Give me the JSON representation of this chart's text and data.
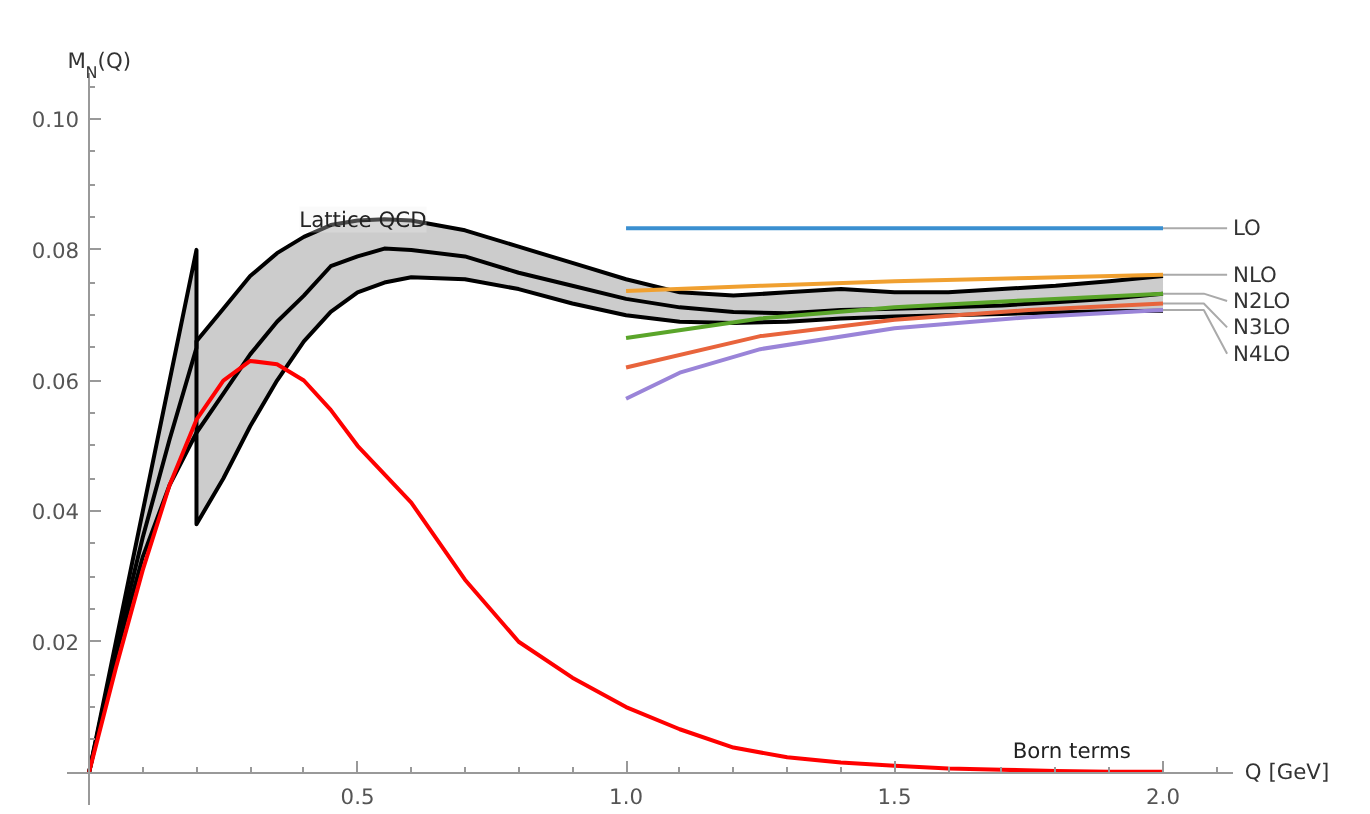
{
  "chart_data": {
    "type": "line",
    "xlabel": "Q [GeV]",
    "ylabel": "M$_{N}$(Q)",
    "xlim": [
      -0.04,
      2.13
    ],
    "ylim": [
      -0.005,
      0.107
    ],
    "xticks": [
      {
        "value": 0.1,
        "label": null
      },
      {
        "value": 0.2,
        "label": null
      },
      {
        "value": 0.3,
        "label": null
      },
      {
        "value": 0.4,
        "label": null
      },
      {
        "value": 0.5,
        "label": "0.5"
      },
      {
        "value": 0.6,
        "label": null
      },
      {
        "value": 0.7,
        "label": null
      },
      {
        "value": 0.8,
        "label": null
      },
      {
        "value": 0.9,
        "label": null
      },
      {
        "value": 1.0,
        "label": "1.0"
      },
      {
        "value": 1.1,
        "label": null
      },
      {
        "value": 1.2,
        "label": null
      },
      {
        "value": 1.3,
        "label": null
      },
      {
        "value": 1.4,
        "label": null
      },
      {
        "value": 1.5,
        "label": "1.5"
      },
      {
        "value": 1.6,
        "label": null
      },
      {
        "value": 1.7,
        "label": null
      },
      {
        "value": 1.8,
        "label": null
      },
      {
        "value": 1.9,
        "label": null
      },
      {
        "value": 2.0,
        "label": "2.0"
      },
      {
        "value": 2.1,
        "label": null
      }
    ],
    "yticks": [
      {
        "value": 0.005,
        "label": null
      },
      {
        "value": 0.01,
        "label": null
      },
      {
        "value": 0.015,
        "label": null
      },
      0.02,
      {
        "value": 0.025,
        "label": null
      },
      {
        "value": 0.03,
        "label": null
      },
      {
        "value": 0.035,
        "label": null
      },
      0.04,
      {
        "value": 0.045,
        "label": null
      },
      {
        "value": 0.05,
        "label": null
      },
      {
        "value": 0.055,
        "label": null
      },
      0.06,
      {
        "value": 0.065,
        "label": null
      },
      {
        "value": 0.07,
        "label": null
      },
      {
        "value": 0.075,
        "label": null
      },
      0.08,
      {
        "value": 0.085,
        "label": null
      },
      {
        "value": 0.09,
        "label": null
      },
      {
        "value": 0.095,
        "label": null
      },
      {
        "value": 0.1,
        "label": "0.10"
      },
      {
        "value": 0.105,
        "label": null
      }
    ],
    "grid": false,
    "marker": "none",
    "line_style": "solid",
    "series": [
      {
        "color": "#000000",
        "x": [
          0,
          0.05,
          0.1,
          0.15,
          0.2,
          0.2,
          0.25,
          0.3,
          0.35,
          0.4,
          0.45,
          0.5,
          0.55,
          0.6,
          0.7,
          0.8,
          0.9,
          1.0,
          1.1,
          1.2,
          1.3,
          1.4,
          1.5,
          1.6,
          1.7,
          1.8,
          1.9,
          2.0
        ],
        "values": [
          0,
          0.02,
          0.04,
          0.06,
          0.08,
          0.052,
          0.058,
          0.064,
          0.069,
          0.073,
          0.0775,
          0.079,
          0.0802,
          0.08,
          0.079,
          0.0765,
          0.0745,
          0.0725,
          0.0712,
          0.0705,
          0.0703,
          0.0708,
          0.071,
          0.0712,
          0.0715,
          0.072,
          0.0725,
          0.0733
        ],
        "lower": [
          0,
          0.018,
          0.033,
          0.044,
          0.052,
          0.038,
          0.045,
          0.053,
          0.06,
          0.066,
          0.0705,
          0.0735,
          0.075,
          0.0758,
          0.0755,
          0.074,
          0.0718,
          0.07,
          0.069,
          0.0688,
          0.069,
          0.0695,
          0.0698,
          0.07,
          0.0702,
          0.0704,
          0.0706,
          0.0707
        ],
        "upper": [
          0,
          0.02,
          0.04,
          0.06,
          0.08,
          0.066,
          0.071,
          0.076,
          0.0795,
          0.082,
          0.0838,
          0.0845,
          0.0847,
          0.0845,
          0.083,
          0.0805,
          0.078,
          0.0755,
          0.0735,
          0.073,
          0.0735,
          0.074,
          0.0735,
          0.0735,
          0.074,
          0.0745,
          0.0752,
          0.076
        ]
      },
      {
        "color": "#000000",
        "x": [
          0,
          0.05,
          0.1,
          0.15,
          0.2,
          0.2,
          0.25,
          0.3,
          0.35,
          0.4,
          0.45,
          0.5,
          0.55,
          0.6,
          0.7,
          0.8,
          0.9,
          1.0,
          1.1,
          1.2,
          1.3,
          1.4,
          1.5,
          1.6,
          1.7,
          1.8,
          1.9,
          2.0
        ],
        "values": [
          0,
          0.019,
          0.036,
          0.051,
          0.065,
          0.066,
          0.071,
          0.076,
          0.0795,
          0.082,
          0.0838,
          0.0845,
          0.0847,
          0.0845,
          0.083,
          0.0805,
          0.078,
          0.0755,
          0.0735,
          0.073,
          0.0735,
          0.074,
          0.0735,
          0.0735,
          0.074,
          0.0745,
          0.0752,
          0.076
        ]
      },
      {
        "color": "#000000",
        "x": [
          0,
          0.05,
          0.1,
          0.15,
          0.2,
          0.2,
          0.25,
          0.3,
          0.35,
          0.4,
          0.45,
          0.5,
          0.55,
          0.6,
          0.7,
          0.8,
          0.9,
          1.0,
          1.1,
          1.2,
          1.3,
          1.4,
          1.5,
          1.6,
          1.7,
          1.8,
          1.9,
          2.0
        ],
        "values": [
          0,
          0.018,
          0.033,
          0.044,
          0.052,
          0.038,
          0.045,
          0.053,
          0.06,
          0.066,
          0.0705,
          0.0735,
          0.075,
          0.0758,
          0.0755,
          0.074,
          0.0718,
          0.07,
          0.069,
          0.0688,
          0.069,
          0.0695,
          0.0698,
          0.07,
          0.0702,
          0.0704,
          0.0706,
          0.0707
        ]
      },
      {
        "color": "#ff0000",
        "x": [
          0,
          0.05,
          0.1,
          0.15,
          0.2,
          0.25,
          0.3,
          0.35,
          0.4,
          0.45,
          0.5,
          0.6,
          0.7,
          0.8,
          0.9,
          1.0,
          1.1,
          1.2,
          1.3,
          1.4,
          1.5,
          1.6,
          1.7,
          1.8,
          1.9,
          2.0
        ],
        "values": [
          0,
          0.016,
          0.031,
          0.044,
          0.054,
          0.06,
          0.063,
          0.0625,
          0.06,
          0.0555,
          0.05,
          0.0413,
          0.0295,
          0.02,
          0.0145,
          0.01,
          0.0066,
          0.0038,
          0.0023,
          0.0015,
          0.001,
          0.0006,
          0.0004,
          0.0002,
          0.0001,
          0.0001
        ]
      },
      {
        "name": "LO",
        "color": "#3a8fd0",
        "x": [
          1.0,
          2.0
        ],
        "values": [
          0.0833,
          0.0833
        ]
      },
      {
        "name": "NLO",
        "color": "#f0a030",
        "x": [
          1.0,
          1.25,
          1.5,
          1.75,
          2.0
        ],
        "values": [
          0.0737,
          0.0745,
          0.0752,
          0.0757,
          0.0762
        ]
      },
      {
        "name": "N2LO",
        "color": "#5aa52a",
        "x": [
          1.0,
          1.25,
          1.5,
          1.75,
          2.0
        ],
        "values": [
          0.0665,
          0.0695,
          0.0712,
          0.0723,
          0.0733
        ]
      },
      {
        "name": "N3LO",
        "color": "#e8643c",
        "x": [
          1.0,
          1.25,
          1.5,
          1.75,
          2.0
        ],
        "values": [
          0.062,
          0.0668,
          0.0693,
          0.0708,
          0.0718
        ]
      },
      {
        "name": "N4LO",
        "color": "#9a84d8",
        "x": [
          1.0,
          1.1,
          1.25,
          1.5,
          1.75,
          2.0
        ],
        "values": [
          0.0572,
          0.0612,
          0.0648,
          0.068,
          0.0697,
          0.0708
        ]
      }
    ],
    "annotations": [
      {
        "text": "Lattice QCD",
        "x": 0.51,
        "y": 0.0845
      },
      {
        "text": "Born terms",
        "x": 1.83,
        "y": 0.0001
      }
    ]
  }
}
